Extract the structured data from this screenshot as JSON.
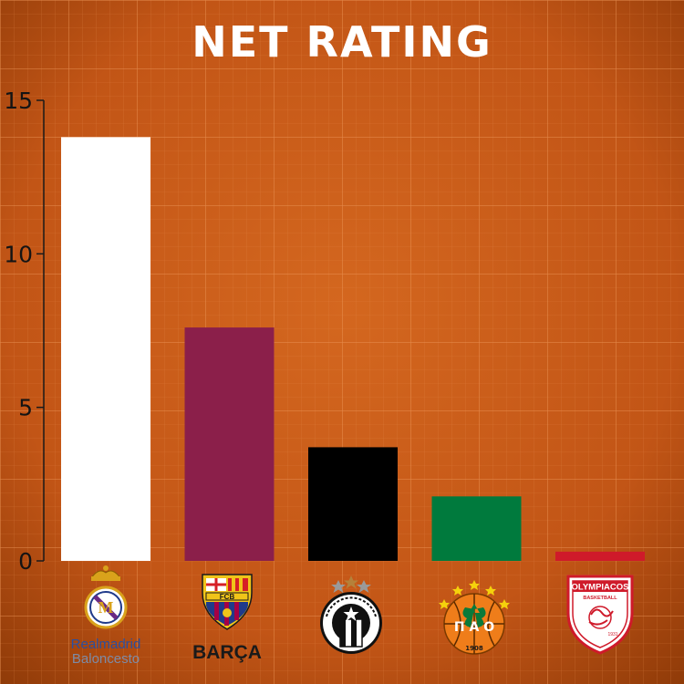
{
  "chart_data": {
    "type": "bar",
    "title": "NET RATING",
    "xlabel": "",
    "ylabel": "",
    "ylim": [
      0,
      15
    ],
    "yticks": [
      0,
      5,
      10,
      15
    ],
    "grid": true,
    "legend": "none",
    "categories": [
      {
        "team": "Real Madrid",
        "logo_text": [
          "Realmadrid",
          "Baloncesto"
        ],
        "icon": "real-madrid-crest-icon"
      },
      {
        "team": "Barça",
        "logo_text": [
          "BARÇA"
        ],
        "icon": "fcb-crest-icon"
      },
      {
        "team": "Partizan",
        "logo_text": [],
        "icon": "partizan-crest-icon"
      },
      {
        "team": "Panathinaikos",
        "logo_text": [],
        "icon": "panathinaikos-crest-icon"
      },
      {
        "team": "Olympiacos",
        "logo_text": [],
        "icon": "olympiacos-crest-icon"
      }
    ],
    "values": [
      13.8,
      7.6,
      3.7,
      2.1,
      0.3
    ],
    "bar_colors": [
      "#ffffff",
      "#8b1f4a",
      "#000000",
      "#007a3d",
      "#cf1a2a"
    ]
  },
  "colors": {
    "background": "#c65a19",
    "background_dark": "#8e3a08",
    "grid": "#e48a4c",
    "axis": "#1a1a1a"
  }
}
